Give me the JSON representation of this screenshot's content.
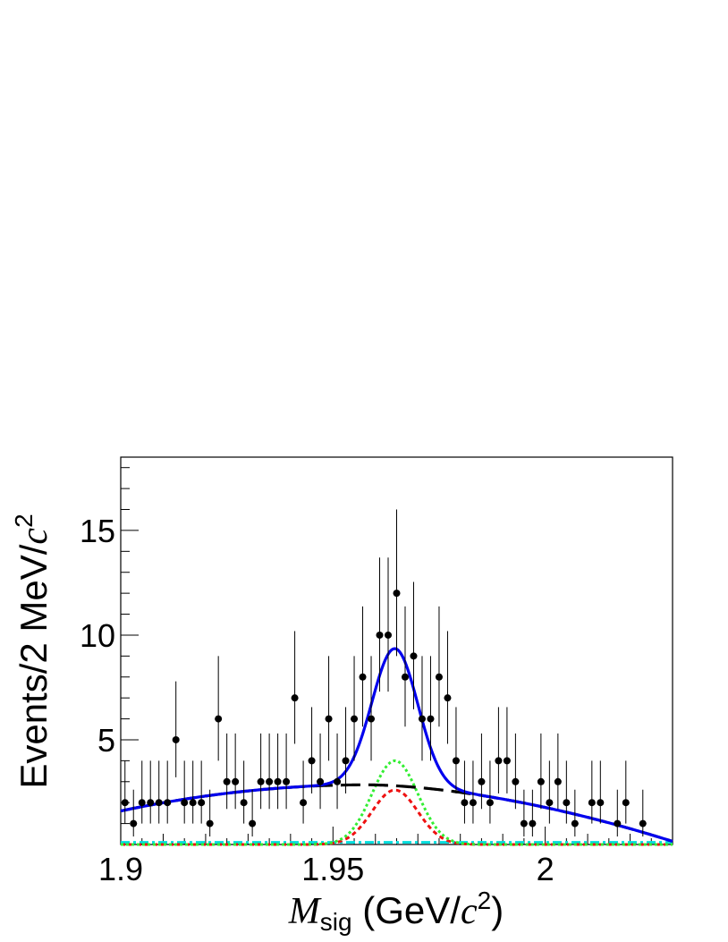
{
  "chart_data": {
    "type": "scatter",
    "xlabel": {
      "var": "M",
      "sub": "sig",
      "unit_open": " (GeV/",
      "unit_var": "c",
      "unit_sup": "2",
      "unit_close": ")"
    },
    "ylabel": {
      "text": "Events/2 MeV/",
      "var": "c",
      "sup": "2"
    },
    "xlim": [
      1.9,
      2.03
    ],
    "ylim": [
      0,
      18.5
    ],
    "xticks": [
      1.9,
      1.95,
      2.0
    ],
    "xtick_labels": [
      "1.9",
      "1.95",
      "2"
    ],
    "yticks": [
      5,
      10,
      15
    ],
    "ytick_labels": [
      "5",
      "10",
      "15"
    ],
    "grid": false,
    "legend": "none",
    "colors": {
      "data": "#000000",
      "total_fit": "#0000ee",
      "background": "#000000",
      "signal_green": "#33ee33",
      "signal_red": "#ee1111",
      "peaking_cyan": "#00dddd"
    },
    "series": [
      {
        "kind": "data-points",
        "x": [
          1.901,
          1.903,
          1.905,
          1.907,
          1.909,
          1.911,
          1.913,
          1.915,
          1.917,
          1.919,
          1.921,
          1.923,
          1.925,
          1.927,
          1.929,
          1.931,
          1.933,
          1.935,
          1.937,
          1.939,
          1.941,
          1.943,
          1.945,
          1.947,
          1.949,
          1.951,
          1.953,
          1.955,
          1.957,
          1.959,
          1.961,
          1.963,
          1.965,
          1.967,
          1.969,
          1.971,
          1.973,
          1.975,
          1.977,
          1.979,
          1.981,
          1.983,
          1.985,
          1.987,
          1.989,
          1.991,
          1.993,
          1.995,
          1.997,
          1.999,
          2.001,
          2.003,
          2.005,
          2.007,
          2.011,
          2.013,
          2.017,
          2.019,
          2.023
        ],
        "y": [
          2,
          1,
          2,
          2,
          2,
          2,
          5,
          2,
          2,
          2,
          1,
          6,
          3,
          3,
          2,
          1,
          3,
          3,
          3,
          3,
          7,
          2,
          4,
          3,
          6,
          3,
          4,
          6,
          8,
          6,
          10,
          10,
          12,
          8,
          9,
          6,
          6,
          8,
          7,
          4,
          2,
          2,
          3,
          2,
          4,
          4,
          3,
          1,
          1,
          3,
          2,
          3,
          2,
          1,
          2,
          2,
          1,
          2,
          1
        ]
      },
      {
        "kind": "total-fit",
        "style": "solid"
      },
      {
        "kind": "background",
        "style": "dashed"
      },
      {
        "kind": "signal-component",
        "style": "dotted",
        "color": "green"
      },
      {
        "kind": "signal-component",
        "style": "dotted",
        "color": "red"
      },
      {
        "kind": "flat-component",
        "style": "dash-dot",
        "color": "cyan"
      }
    ],
    "model": {
      "signal_mean": 1.9646,
      "signal_sigma": 0.0054,
      "green_peak": 4.0,
      "red_peak": 2.6,
      "total_signal_peak": 6.55,
      "bkg_at_xmin": 1.6,
      "bkg_max": 2.85,
      "bkg_max_at": 1.958,
      "bkg_at_xmax": 0.15,
      "cyan_level": 0.1
    }
  }
}
